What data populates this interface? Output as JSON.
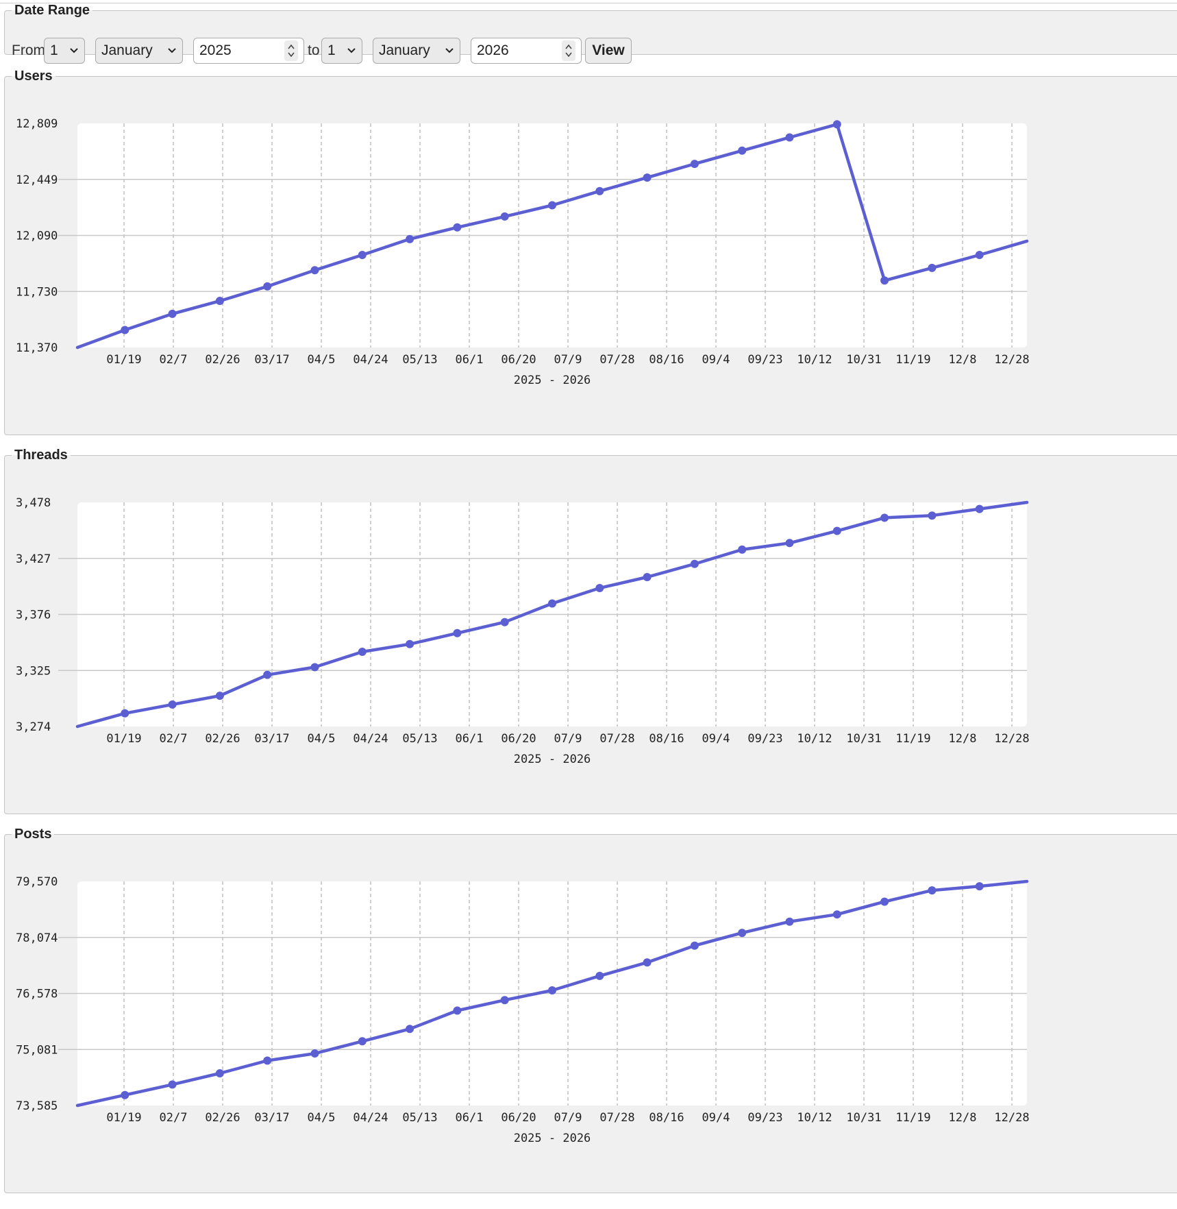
{
  "date_range": {
    "legend": "Date Range",
    "from_label": "From",
    "from_day": "1",
    "from_month": "January",
    "from_year": "2025",
    "to_label": "to",
    "to_day": "1",
    "to_month": "January",
    "to_year": "2026",
    "view_label": "View"
  },
  "colors": {
    "series": "#5b5fd1",
    "grid": "#c8c8c8",
    "panel": "#f0f0f0",
    "plot_bg": "#ffffff"
  },
  "chart_data": [
    {
      "id": "users",
      "type": "line",
      "title": "Users",
      "xlabel": "2025 - 2026",
      "grid": true,
      "yticks": [
        "11,370",
        "11,730",
        "12,090",
        "12,449",
        "12,809"
      ],
      "ylim": [
        11370,
        12809
      ],
      "xticks": [
        "01/19",
        "02/7",
        "02/26",
        "03/17",
        "04/5",
        "04/24",
        "05/13",
        "06/1",
        "06/20",
        "07/9",
        "07/28",
        "08/16",
        "09/4",
        "09/23",
        "10/12",
        "10/31",
        "11/19",
        "12/8",
        "12/28"
      ],
      "series": [
        {
          "values": [
            11370,
            11482,
            11586,
            11669,
            11762,
            11866,
            11964,
            12066,
            12141,
            12211,
            12283,
            12374,
            12461,
            12549,
            12634,
            12719,
            12803,
            11800,
            11881,
            11964,
            12053
          ]
        }
      ]
    },
    {
      "id": "threads",
      "type": "line",
      "title": "Threads",
      "xlabel": "2025 - 2026",
      "grid": true,
      "yticks": [
        "3,274",
        "3,325",
        "3,376",
        "3,427",
        "3,478"
      ],
      "ylim": [
        3274,
        3478
      ],
      "xticks": [
        "01/19",
        "02/7",
        "02/26",
        "03/17",
        "04/5",
        "04/24",
        "05/13",
        "06/1",
        "06/20",
        "07/9",
        "07/28",
        "08/16",
        "09/4",
        "09/23",
        "10/12",
        "10/31",
        "11/19",
        "12/8",
        "12/28"
      ],
      "series": [
        {
          "values": [
            3274,
            3286,
            3294,
            3302,
            3321,
            3328,
            3342,
            3349,
            3359,
            3369,
            3386,
            3400,
            3410,
            3422,
            3435,
            3441,
            3452,
            3464,
            3466,
            3472,
            3478
          ]
        }
      ]
    },
    {
      "id": "posts",
      "type": "line",
      "title": "Posts",
      "xlabel": "2025 - 2026",
      "grid": true,
      "yticks": [
        "73,585",
        "75,081",
        "76,578",
        "78,074",
        "79,570"
      ],
      "ylim": [
        73585,
        79570
      ],
      "xticks": [
        "01/19",
        "02/7",
        "02/26",
        "03/17",
        "04/5",
        "04/24",
        "05/13",
        "06/1",
        "06/20",
        "07/9",
        "07/28",
        "08/16",
        "09/4",
        "09/23",
        "10/12",
        "10/31",
        "11/19",
        "12/8",
        "12/28"
      ],
      "series": [
        {
          "values": [
            73585,
            73865,
            74145,
            74445,
            74784,
            74975,
            75300,
            75630,
            76120,
            76400,
            76660,
            77046,
            77405,
            77855,
            78195,
            78495,
            78688,
            79028,
            79330,
            79440,
            79570
          ]
        }
      ]
    }
  ]
}
